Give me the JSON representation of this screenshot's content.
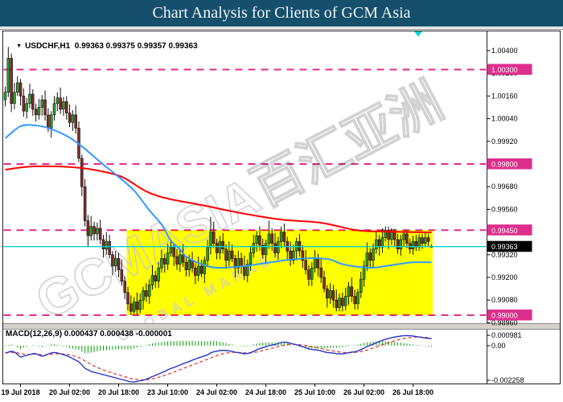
{
  "title_bar": {
    "text": "Chart Analysis for Clients of GCM Asia",
    "bg": "#154f6c",
    "fg": "#eef5f8"
  },
  "window": {
    "dropdown_icon": "▼",
    "symbol_header": "USDCHF,H1  0.99363 0.99375 0.99357 0.99363"
  },
  "watermark": {
    "line1": "GCMASIA百汇亚洲",
    "line2": "GLOBAL MARKETS"
  },
  "price_axis": {
    "ticks": [
      "1.00400",
      "1.00280",
      "1.00160",
      "1.00040",
      "0.99920",
      "0.99800",
      "0.99680",
      "0.99560",
      "0.99440",
      "0.99320",
      "0.99200",
      "0.99080",
      "0.98960"
    ],
    "level_badges": [
      "1.00300",
      "0.99800",
      "0.99450",
      "0.99000"
    ],
    "current_badge": "0.99363"
  },
  "time_axis": {
    "labels": [
      {
        "text": "19 Jul 2018",
        "i": 5
      },
      {
        "text": "20 Jul 02:00",
        "i": 21
      },
      {
        "text": "20 Jul 18:00",
        "i": 37
      },
      {
        "text": "23 Jul 10:00",
        "i": 53
      },
      {
        "text": "24 Jul 02:00",
        "i": 69
      },
      {
        "text": "24 Jul 18:00",
        "i": 85
      },
      {
        "text": "25 Jul 10:00",
        "i": 101
      },
      {
        "text": "26 Jul 02:00",
        "i": 117
      },
      {
        "text": "26 Jul 18:00",
        "i": 133
      }
    ]
  },
  "macd_panel": {
    "header": "MACD(12,26,9) 0.000437 0.000438 -0.000001",
    "axis_labels": [
      {
        "text": "0.000981",
        "v": 0.000981
      },
      {
        "text": "0.00",
        "v": 0
      },
      {
        "text": "-0.002258",
        "v": -0.002258
      }
    ]
  },
  "colors": {
    "bull": "#2e9b2e",
    "bear": "#7e2d2d",
    "wick": "#111111",
    "ma_fast": "#3399ff",
    "ma_slow": "#ff0000",
    "levels": "#de2e8e",
    "current_line": "#00d2d2",
    "zone": "#ffff00",
    "hist": "#00a000",
    "macd_main": "#2633c8",
    "macd_signal": "#e03030",
    "badge": "#de2e8e",
    "badge_current_bg": "#000000",
    "badge_fg": "#ffffff",
    "axis_text": "#000000",
    "border": "#222222"
  },
  "chart_data": {
    "type": "candlestick",
    "symbol": "USDCHF",
    "timeframe": "H1",
    "title": "Chart Analysis for Clients of GCM Asia",
    "ylim": [
      0.989,
      1.0048
    ],
    "levels": [
      1.003,
      0.998,
      0.9945,
      0.99
    ],
    "current_price": 0.99363,
    "highlight_zone": {
      "start_index": 40,
      "end_index": 139,
      "top": 0.9945,
      "bottom": 0.99
    },
    "ohlc": [
      [
        1.0014,
        1.0021,
        1.00105,
        1.0018
      ],
      [
        1.0018,
        1.0042,
        1.00155,
        1.0036
      ],
      [
        1.0036,
        1.00385,
        1.00075,
        1.0012
      ],
      [
        1.0012,
        1.0023,
        1.0009,
        1.0018
      ],
      [
        1.0018,
        1.00265,
        1.0016,
        1.0023
      ],
      [
        1.0023,
        1.0025,
        1.0011,
        1.0016
      ],
      [
        1.0016,
        1.002,
        1.0005,
        1.0008
      ],
      [
        1.0008,
        1.0015,
        1.0004,
        1.0012
      ],
      [
        1.0012,
        1.00225,
        1.00095,
        1.0017
      ],
      [
        1.0017,
        1.00195,
        1.00055,
        1.0009
      ],
      [
        1.0009,
        1.0012,
        1.00025,
        1.0006
      ],
      [
        1.0006,
        1.00145,
        1.00035,
        1.001
      ],
      [
        1.001,
        1.00165,
        1.00055,
        1.0014
      ],
      [
        1.0014,
        1.0019,
        1.0003,
        1.0006
      ],
      [
        1.0006,
        1.00095,
        0.9997,
        0.9999
      ],
      [
        0.9999,
        1.0008,
        0.9994,
        1.0006
      ],
      [
        1.0006,
        1.0016,
        1.0003,
        1.0012
      ],
      [
        1.0012,
        1.0018,
        1.0008,
        1.0015
      ],
      [
        1.0015,
        1.00205,
        1.00065,
        1.0009
      ],
      [
        1.0009,
        1.00155,
        1.00055,
        1.0013
      ],
      [
        1.0013,
        1.0016,
        1.00035,
        1.0007
      ],
      [
        1.0007,
        1.00115,
        0.99995,
        1.0002
      ],
      [
        1.0002,
        1.00085,
        0.99975,
        1.0006
      ],
      [
        1.0006,
        1.0011,
        0.9996,
        0.9999
      ],
      [
        0.9999,
        1.00025,
        0.9981,
        0.9983
      ],
      [
        0.9983,
        0.9985,
        0.9963,
        0.9968
      ],
      [
        0.9968,
        0.9972,
        0.9947,
        0.995
      ],
      [
        0.995,
        0.9953,
        0.9936,
        0.9942
      ],
      [
        0.9942,
        0.99525,
        0.99395,
        0.9947
      ],
      [
        0.9947,
        0.99495,
        0.99395,
        0.9943
      ],
      [
        0.9943,
        0.9949,
        0.99395,
        0.9946
      ],
      [
        0.9946,
        0.99505,
        0.99375,
        0.994
      ],
      [
        0.994,
        0.99425,
        0.99305,
        0.9935
      ],
      [
        0.9935,
        0.9944,
        0.9932,
        0.9939
      ],
      [
        0.9939,
        0.99425,
        0.993,
        0.9932
      ],
      [
        0.9932,
        0.9934,
        0.9921,
        0.9926
      ],
      [
        0.9926,
        0.9934,
        0.9923,
        0.993
      ],
      [
        0.993,
        0.9933,
        0.992,
        0.9924
      ],
      [
        0.9924,
        0.99295,
        0.99155,
        0.9918
      ],
      [
        0.9918,
        0.99205,
        0.99085,
        0.9912
      ],
      [
        0.9912,
        0.9915,
        0.99025,
        0.9906
      ],
      [
        0.9906,
        0.99105,
        0.99,
        0.9902
      ],
      [
        0.9902,
        0.99095,
        0.99005,
        0.9907
      ],
      [
        0.9907,
        0.9912,
        0.99,
        0.9903
      ],
      [
        0.9903,
        0.99115,
        0.9901,
        0.9908
      ],
      [
        0.9908,
        0.9915,
        0.9903,
        0.9913
      ],
      [
        0.9913,
        0.9917,
        0.9907,
        0.991
      ],
      [
        0.991,
        0.9919,
        0.9906,
        0.9916
      ],
      [
        0.9916,
        0.99265,
        0.99135,
        0.9921
      ],
      [
        0.9921,
        0.99235,
        0.99145,
        0.9918
      ],
      [
        0.9918,
        0.9928,
        0.99145,
        0.9925
      ],
      [
        0.9925,
        0.99345,
        0.99225,
        0.993
      ],
      [
        0.993,
        0.99325,
        0.99225,
        0.9927
      ],
      [
        0.9927,
        0.9938,
        0.9924,
        0.9933
      ],
      [
        0.9933,
        0.99395,
        0.9931,
        0.9936
      ],
      [
        0.9936,
        0.9938,
        0.9926,
        0.9931
      ],
      [
        0.9931,
        0.9935,
        0.9924,
        0.9927
      ],
      [
        0.9927,
        0.9935,
        0.9923,
        0.9932
      ],
      [
        0.9932,
        0.99375,
        0.99255,
        0.9928
      ],
      [
        0.9928,
        0.99305,
        0.99205,
        0.9924
      ],
      [
        0.9924,
        0.9932,
        0.99205,
        0.9929
      ],
      [
        0.9929,
        0.99335,
        0.99225,
        0.9925
      ],
      [
        0.9925,
        0.99275,
        0.99165,
        0.9921
      ],
      [
        0.9921,
        0.9931,
        0.9918,
        0.9926
      ],
      [
        0.9926,
        0.99295,
        0.992,
        0.9922
      ],
      [
        0.9922,
        0.9931,
        0.9917,
        0.9929
      ],
      [
        0.9929,
        0.994,
        0.9926,
        0.9936
      ],
      [
        0.9936,
        0.9952,
        0.9932,
        0.9944
      ],
      [
        0.9944,
        0.99495,
        0.99355,
        0.9938
      ],
      [
        0.9938,
        0.99405,
        0.99295,
        0.9933
      ],
      [
        0.9933,
        0.9942,
        0.99295,
        0.9939
      ],
      [
        0.9939,
        0.99435,
        0.99325,
        0.9935
      ],
      [
        0.9935,
        0.99375,
        0.99245,
        0.9929
      ],
      [
        0.9929,
        0.9939,
        0.9926,
        0.9934
      ],
      [
        0.9934,
        0.99375,
        0.9928,
        0.993
      ],
      [
        0.993,
        0.9932,
        0.992,
        0.9925
      ],
      [
        0.9925,
        0.9934,
        0.9922,
        0.993
      ],
      [
        0.993,
        0.9933,
        0.9922,
        0.9926
      ],
      [
        0.9926,
        0.99315,
        0.99185,
        0.9921
      ],
      [
        0.9921,
        0.99295,
        0.99175,
        0.9927
      ],
      [
        0.9927,
        0.9936,
        0.99235,
        0.9933
      ],
      [
        0.9933,
        0.99425,
        0.99305,
        0.9938
      ],
      [
        0.9938,
        0.99445,
        0.99335,
        0.9942
      ],
      [
        0.9942,
        0.9947,
        0.9934,
        0.9937
      ],
      [
        0.9937,
        0.99405,
        0.993,
        0.9932
      ],
      [
        0.9932,
        0.994,
        0.9927,
        0.9938
      ],
      [
        0.9938,
        0.995,
        0.9935,
        0.9943
      ],
      [
        0.9943,
        0.9946,
        0.9934,
        0.9938
      ],
      [
        0.9938,
        0.99435,
        0.99305,
        0.9933
      ],
      [
        0.9933,
        0.99415,
        0.99295,
        0.9939
      ],
      [
        0.9939,
        0.9947,
        0.99355,
        0.9944
      ],
      [
        0.9944,
        0.99485,
        0.99365,
        0.9939
      ],
      [
        0.9939,
        0.99415,
        0.99295,
        0.9934
      ],
      [
        0.9934,
        0.9939,
        0.9926,
        0.9929
      ],
      [
        0.9929,
        0.99375,
        0.9927,
        0.9934
      ],
      [
        0.9934,
        0.9941,
        0.9929,
        0.9939
      ],
      [
        0.9939,
        0.9943,
        0.9931,
        0.9934
      ],
      [
        0.9934,
        0.9937,
        0.9925,
        0.9929
      ],
      [
        0.9929,
        0.99345,
        0.99215,
        0.9924
      ],
      [
        0.9924,
        0.99265,
        0.99155,
        0.9919
      ],
      [
        0.9919,
        0.9928,
        0.99155,
        0.9925
      ],
      [
        0.9925,
        0.99345,
        0.99225,
        0.993
      ],
      [
        0.993,
        0.99325,
        0.99205,
        0.9925
      ],
      [
        0.9925,
        0.993,
        0.9917,
        0.992
      ],
      [
        0.992,
        0.99235,
        0.9912,
        0.9914
      ],
      [
        0.9914,
        0.9916,
        0.9904,
        0.9909
      ],
      [
        0.9909,
        0.9917,
        0.9906,
        0.9913
      ],
      [
        0.9913,
        0.9916,
        0.9904,
        0.9908
      ],
      [
        0.9908,
        0.99135,
        0.9902,
        0.9904
      ],
      [
        0.9904,
        0.99115,
        0.9902,
        0.9909
      ],
      [
        0.9909,
        0.9912,
        0.9902,
        0.9905
      ],
      [
        0.9905,
        0.99145,
        0.99025,
        0.991
      ],
      [
        0.991,
        0.99175,
        0.99055,
        0.9915
      ],
      [
        0.9915,
        0.992,
        0.9907,
        0.991
      ],
      [
        0.991,
        0.99135,
        0.9903,
        0.9906
      ],
      [
        0.9906,
        0.9914,
        0.9903,
        0.9912
      ],
      [
        0.9912,
        0.9923,
        0.9909,
        0.9919
      ],
      [
        0.9919,
        0.9929,
        0.9915,
        0.9926
      ],
      [
        0.9926,
        0.99385,
        0.99235,
        0.9933
      ],
      [
        0.9933,
        0.99355,
        0.99255,
        0.9929
      ],
      [
        0.9929,
        0.9938,
        0.99255,
        0.9935
      ],
      [
        0.9935,
        0.99445,
        0.99325,
        0.994
      ],
      [
        0.994,
        0.99425,
        0.99315,
        0.9936
      ],
      [
        0.9936,
        0.9946,
        0.9933,
        0.9941
      ],
      [
        0.9941,
        0.9947,
        0.9939,
        0.9945
      ],
      [
        0.9945,
        0.9947,
        0.9935,
        0.994
      ],
      [
        0.994,
        0.9946,
        0.9937,
        0.9944
      ],
      [
        0.9944,
        0.99455,
        0.9936,
        0.994
      ],
      [
        0.994,
        0.9943,
        0.99325,
        0.9935
      ],
      [
        0.9935,
        0.99425,
        0.99315,
        0.994
      ],
      [
        0.994,
        0.99445,
        0.99365,
        0.9943
      ],
      [
        0.9943,
        0.9945,
        0.99355,
        0.9938
      ],
      [
        0.9938,
        0.99405,
        0.99325,
        0.9935
      ],
      [
        0.9935,
        0.9942,
        0.9932,
        0.9939
      ],
      [
        0.9939,
        0.99425,
        0.9934,
        0.9936
      ],
      [
        0.9936,
        0.9943,
        0.9934,
        0.9941
      ],
      [
        0.9941,
        0.9943,
        0.9935,
        0.9938
      ],
      [
        0.9938,
        0.9944,
        0.9936,
        0.9941
      ],
      [
        0.9941,
        0.9943,
        0.99365,
        0.9939
      ],
      [
        0.99363,
        0.99375,
        0.99357,
        0.99363
      ]
    ],
    "ma_blue": [
      [
        0,
        0.99936
      ],
      [
        5,
        1.0
      ],
      [
        10,
        1.00004
      ],
      [
        15,
        0.99985
      ],
      [
        21,
        0.9994
      ],
      [
        26,
        0.9988
      ],
      [
        31,
        0.9981
      ],
      [
        36,
        0.99745
      ],
      [
        42,
        0.9966
      ],
      [
        47,
        0.99555
      ],
      [
        51,
        0.9948
      ],
      [
        54,
        0.99395
      ],
      [
        57,
        0.9935
      ],
      [
        59,
        0.9931
      ],
      [
        64,
        0.9927
      ],
      [
        69,
        0.99251
      ],
      [
        77,
        0.99258
      ],
      [
        85,
        0.99276
      ],
      [
        93,
        0.99294
      ],
      [
        101,
        0.99302
      ],
      [
        106,
        0.99294
      ],
      [
        110,
        0.9927
      ],
      [
        115,
        0.99256
      ],
      [
        120,
        0.99251
      ],
      [
        124,
        0.9926
      ],
      [
        129,
        0.99272
      ],
      [
        133,
        0.9928
      ],
      [
        139,
        0.9928
      ]
    ],
    "ma_red": [
      [
        0,
        0.9977
      ],
      [
        9,
        0.99787
      ],
      [
        22,
        0.99783
      ],
      [
        30,
        0.99766
      ],
      [
        38,
        0.99732
      ],
      [
        46,
        0.99655
      ],
      [
        53,
        0.99617
      ],
      [
        64,
        0.99583
      ],
      [
        77,
        0.9954
      ],
      [
        90,
        0.99506
      ],
      [
        103,
        0.99489
      ],
      [
        114,
        0.99451
      ],
      [
        122,
        0.99443
      ],
      [
        139,
        0.99438
      ]
    ],
    "macd": {
      "params": [
        12,
        26,
        9
      ],
      "ylim": [
        -0.002258,
        0.000981
      ],
      "last_values": {
        "main": 0.000437,
        "signal": 0.000438,
        "histogram": -1e-06
      },
      "signal_ema": 9,
      "main": [
        -0.00045,
        -0.0004,
        -0.00035,
        -0.0004,
        -0.00055,
        -0.0007,
        -0.00065,
        -0.0006,
        -0.00055,
        -0.0005,
        -0.0005,
        -0.00058,
        -0.00065,
        -0.0006,
        -0.00052,
        -0.00045,
        -0.00042,
        -0.00045,
        -0.0005,
        -0.00056,
        -0.00062,
        -0.0007,
        -0.0008,
        -0.0009,
        -0.001,
        -0.0012,
        -0.0014,
        -0.0015,
        -0.0016,
        -0.00165,
        -0.0017,
        -0.00175,
        -0.0018,
        -0.00185,
        -0.0019,
        -0.00195,
        -0.002,
        -0.00205,
        -0.0021,
        -0.00215,
        -0.0022,
        -0.00225,
        -0.00225,
        -0.00222,
        -0.00218,
        -0.00214,
        -0.00208,
        -0.002,
        -0.00192,
        -0.00184,
        -0.00176,
        -0.00168,
        -0.0016,
        -0.0015,
        -0.00142,
        -0.00135,
        -0.00128,
        -0.0012,
        -0.00112,
        -0.00105,
        -0.00098,
        -0.0009,
        -0.00083,
        -0.00076,
        -0.0007,
        -0.00063,
        -0.00056,
        -0.00045,
        -0.00038,
        -0.00034,
        -0.0003,
        -0.00029,
        -0.0003,
        -0.00032,
        -0.00035,
        -0.0004,
        -0.00043,
        -0.00046,
        -0.0005,
        -0.00048,
        -0.00043,
        -0.00035,
        -0.00026,
        -0.00018,
        -0.00012,
        -6e-05,
        0,
        4e-05,
        8e-05,
        0.00014,
        0.0002,
        0.00022,
        0.0002,
        0.00015,
        0.0001,
        6e-05,
        0,
        -6e-05,
        -0.00013,
        -0.0002,
        -0.00023,
        -0.00025,
        -0.00028,
        -0.00032,
        -0.00038,
        -0.00042,
        -0.00044,
        -0.00046,
        -0.00049,
        -0.0005,
        -0.00051,
        -0.00048,
        -0.00043,
        -0.0004,
        -0.00038,
        -0.00032,
        -0.00024,
        -0.00015,
        -5e-05,
        2e-05,
        0.0001,
        0.00018,
        0.00026,
        0.00033,
        0.0004,
        0.00045,
        0.0005,
        0.00054,
        0.00057,
        0.0006,
        0.00062,
        0.00063,
        0.00062,
        0.0006,
        0.00057,
        0.00054,
        0.00051,
        0.00048,
        0.000455,
        0.000437
      ]
    }
  }
}
